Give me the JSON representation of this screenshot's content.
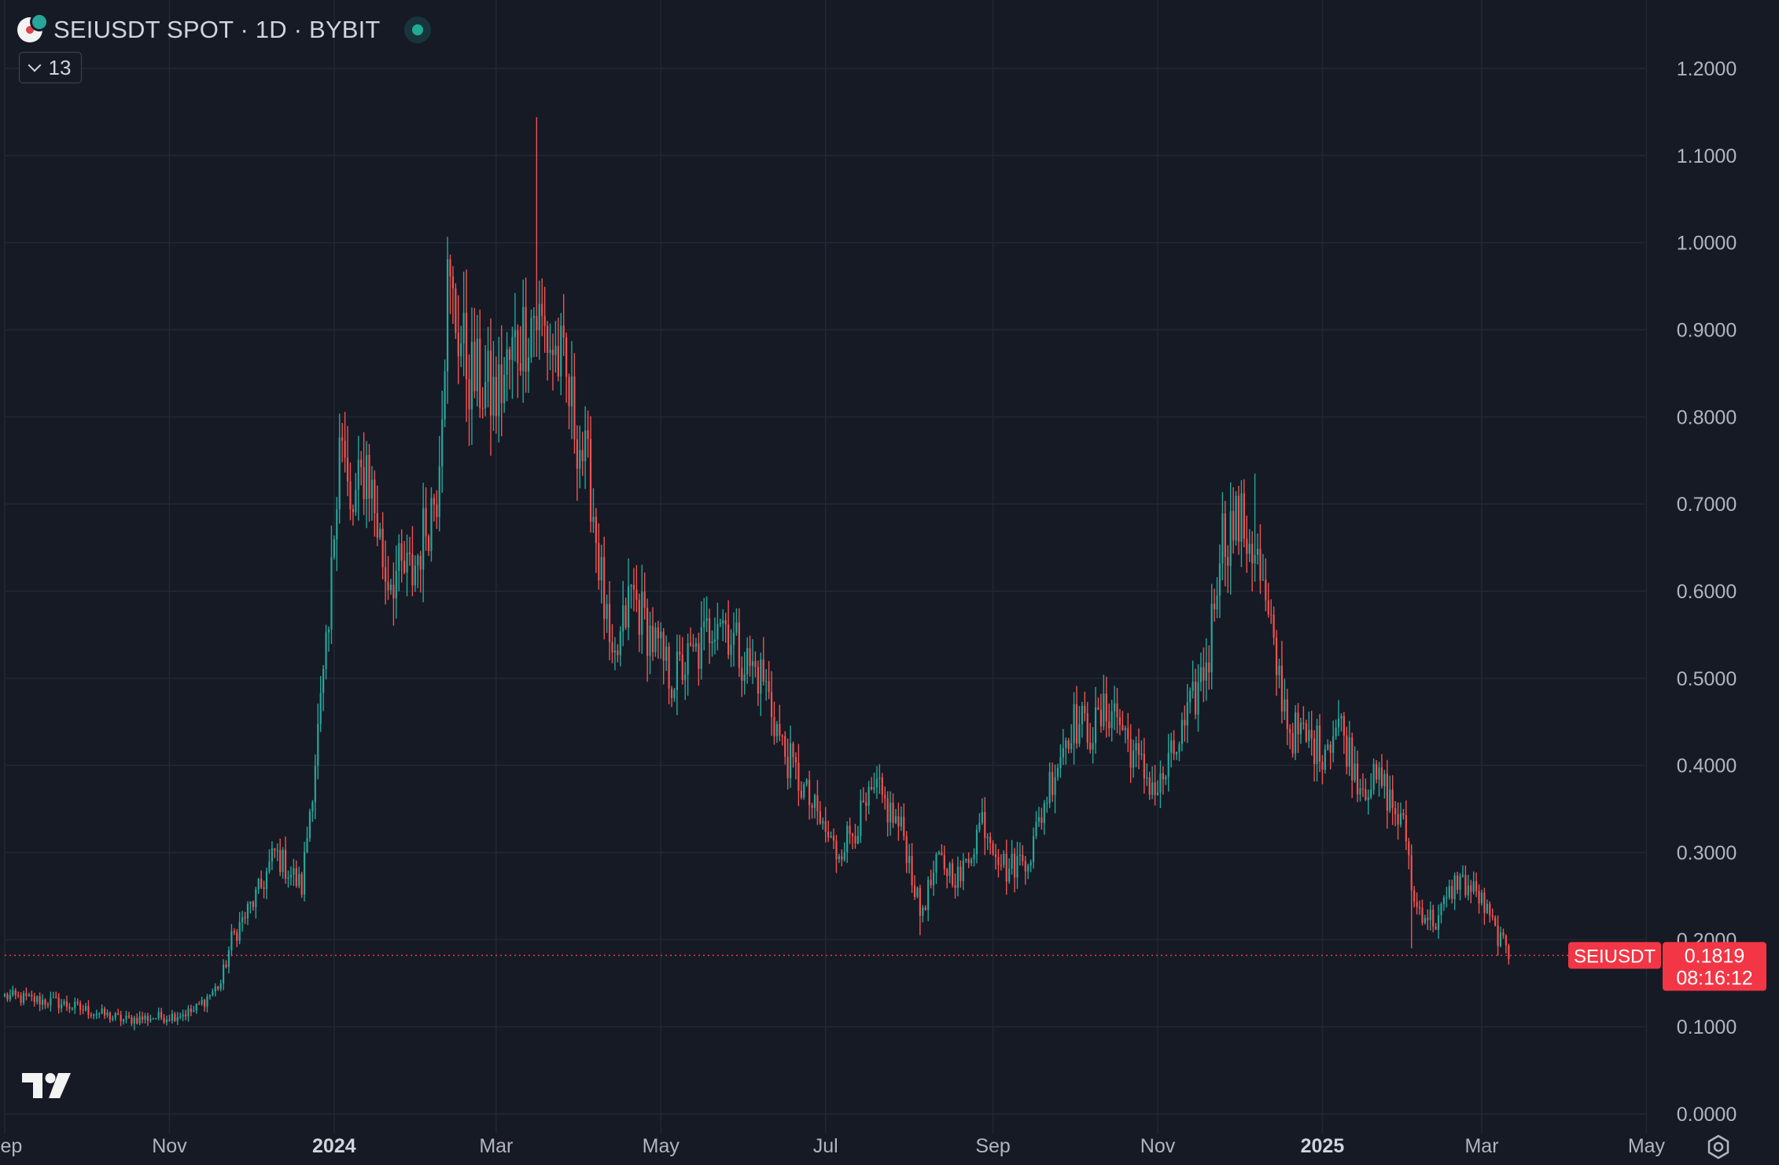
{
  "header": {
    "title": "SEIUSDT SPOT · 1D · BYBIT",
    "indicators_count": "13",
    "status_color": "#22ab94"
  },
  "icons": {
    "symbol_logo": "sei-coin-logo",
    "expand": "chevron-down-icon",
    "brand": "tradingview-logo",
    "settings": "gear-icon"
  },
  "colors": {
    "background": "#161a25",
    "grid": "#232734",
    "up": "#26a69a",
    "down": "#ef5350",
    "axis_text": "#b2b5be",
    "last_price_label": "#f23645"
  },
  "price_label": {
    "symbol": "SEIUSDT",
    "price": "0.1819",
    "countdown": "08:16:12"
  },
  "chart_data": {
    "type": "candlestick",
    "series_name": "SEIUSDT",
    "interval": "1D",
    "last_price": 0.1819,
    "ylim": [
      0,
      1.2
    ],
    "y_ticks": [
      "0.0000",
      "0.1000",
      "0.2000",
      "0.3000",
      "0.4000",
      "0.5000",
      "0.6000",
      "0.7000",
      "0.8000",
      "0.9000",
      "1.0000",
      "1.1000",
      "1.2000"
    ],
    "x_ticks": [
      {
        "label": "Sep",
        "bold": false
      },
      {
        "label": "Nov",
        "bold": false
      },
      {
        "label": "2024",
        "bold": true
      },
      {
        "label": "Mar",
        "bold": false
      },
      {
        "label": "May",
        "bold": false
      },
      {
        "label": "Jul",
        "bold": false
      },
      {
        "label": "Sep",
        "bold": false
      },
      {
        "label": "Nov",
        "bold": false
      },
      {
        "label": "2025",
        "bold": true
      },
      {
        "label": "Mar",
        "bold": false
      },
      {
        "label": "May",
        "bold": false
      }
    ],
    "x_tick_dates": [
      "2023-09-01",
      "2023-11-01",
      "2024-01-01",
      "2024-03-01",
      "2024-05-01",
      "2024-07-01",
      "2024-09-01",
      "2024-11-01",
      "2025-01-01",
      "2025-03-01",
      "2025-05-01"
    ],
    "start_date": "2023-09-01",
    "end_date": "2025-05-01",
    "price_path": [
      [
        "2023-09-01",
        0.135
      ],
      [
        "2023-09-20",
        0.128
      ],
      [
        "2023-10-15",
        0.108
      ],
      [
        "2023-11-01",
        0.112
      ],
      [
        "2023-11-10",
        0.118
      ],
      [
        "2023-11-20",
        0.15
      ],
      [
        "2023-11-24",
        0.2
      ],
      [
        "2023-12-05",
        0.26
      ],
      [
        "2023-12-10",
        0.3
      ],
      [
        "2023-12-20",
        0.26
      ],
      [
        "2023-12-24",
        0.38
      ],
      [
        "2023-12-30",
        0.55
      ],
      [
        "2024-01-03",
        0.8
      ],
      [
        "2024-01-07",
        0.68
      ],
      [
        "2024-01-13",
        0.75
      ],
      [
        "2024-01-20",
        0.62
      ],
      [
        "2024-01-30",
        0.62
      ],
      [
        "2024-02-08",
        0.72
      ],
      [
        "2024-02-12",
        0.95
      ],
      [
        "2024-02-20",
        0.85
      ],
      [
        "2024-03-01",
        0.82
      ],
      [
        "2024-03-08",
        0.88
      ],
      [
        "2024-03-15",
        0.92
      ],
      [
        "2024-03-25",
        0.86
      ],
      [
        "2024-04-05",
        0.72
      ],
      [
        "2024-04-13",
        0.5
      ],
      [
        "2024-04-20",
        0.6
      ],
      [
        "2024-04-27",
        0.55
      ],
      [
        "2024-05-05",
        0.5
      ],
      [
        "2024-05-15",
        0.53
      ],
      [
        "2024-05-22",
        0.58
      ],
      [
        "2024-06-01",
        0.52
      ],
      [
        "2024-06-08",
        0.5
      ],
      [
        "2024-06-15",
        0.42
      ],
      [
        "2024-06-28",
        0.34
      ],
      [
        "2024-07-05",
        0.3
      ],
      [
        "2024-07-12",
        0.33
      ],
      [
        "2024-07-20",
        0.37
      ],
      [
        "2024-07-30",
        0.32
      ],
      [
        "2024-08-05",
        0.23
      ],
      [
        "2024-08-12",
        0.29
      ],
      [
        "2024-08-20",
        0.27
      ],
      [
        "2024-08-28",
        0.34
      ],
      [
        "2024-09-06",
        0.28
      ],
      [
        "2024-09-15",
        0.3
      ],
      [
        "2024-09-22",
        0.38
      ],
      [
        "2024-09-30",
        0.45
      ],
      [
        "2024-10-08",
        0.44
      ],
      [
        "2024-10-15",
        0.47
      ],
      [
        "2024-10-25",
        0.4
      ],
      [
        "2024-11-01",
        0.37
      ],
      [
        "2024-11-12",
        0.45
      ],
      [
        "2024-11-20",
        0.53
      ],
      [
        "2024-11-24",
        0.66
      ],
      [
        "2024-12-01",
        0.68
      ],
      [
        "2024-12-07",
        0.65
      ],
      [
        "2024-12-12",
        0.56
      ],
      [
        "2024-12-20",
        0.44
      ],
      [
        "2025-01-01",
        0.42
      ],
      [
        "2025-01-07",
        0.45
      ],
      [
        "2025-01-15",
        0.38
      ],
      [
        "2025-01-23",
        0.38
      ],
      [
        "2025-02-01",
        0.32
      ],
      [
        "2025-02-04",
        0.24
      ],
      [
        "2025-02-12",
        0.22
      ],
      [
        "2025-02-20",
        0.27
      ],
      [
        "2025-02-28",
        0.25
      ],
      [
        "2025-03-06",
        0.21
      ],
      [
        "2025-03-11",
        0.182
      ]
    ],
    "notable_extremes": [
      {
        "date": "2024-03-16",
        "high": 1.144
      },
      {
        "date": "2024-08-05",
        "low": 0.205
      },
      {
        "date": "2024-12-07",
        "high": 0.735
      },
      {
        "date": "2025-02-03",
        "low": 0.19
      },
      {
        "date": "2023-10-19",
        "low": 0.096
      }
    ]
  }
}
